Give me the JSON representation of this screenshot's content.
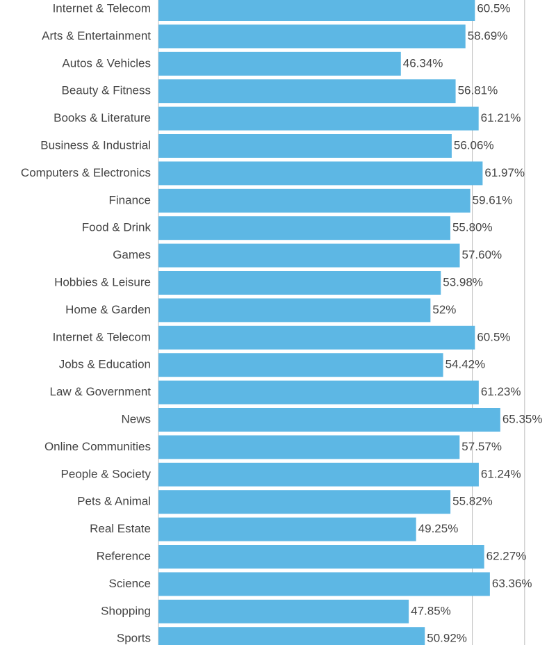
{
  "chart_data": {
    "type": "hbar",
    "color": "#5db7e4",
    "categories": [
      "Internet & Telecom",
      "Arts & Entertainment",
      "Autos & Vehicles",
      "Beauty & Fitness",
      "Books & Literature",
      "Business & Industrial",
      "Computers & Electronics",
      "Finance",
      "Food & Drink",
      "Games",
      "Hobbies & Leisure",
      "Home & Garden",
      "Internet & Telecom",
      "Jobs & Education",
      "Law & Government",
      "News",
      "Online Communities",
      "People & Society",
      "Pets & Animal",
      "Real Estate",
      "Reference",
      "Science",
      "Shopping",
      "Sports"
    ],
    "values": [
      60.5,
      58.69,
      46.34,
      56.81,
      61.21,
      56.06,
      61.97,
      59.61,
      55.8,
      57.6,
      53.98,
      52,
      60.5,
      54.42,
      61.23,
      65.35,
      57.57,
      61.24,
      55.82,
      49.25,
      62.27,
      63.36,
      47.85,
      50.92
    ],
    "value_labels": [
      "60.5%",
      "58.69%",
      "46.34%",
      "56.81%",
      "61.21%",
      "56.06%",
      "61.97%",
      "59.61%",
      "55.80%",
      "57.60%",
      "53.98%",
      "52%",
      "60.5%",
      "54.42%",
      "61.23%",
      "65.35%",
      "57.57%",
      "61.24%",
      "55.82%",
      "49.25%",
      "62.27%",
      "63.36%",
      "47.85%",
      "50.92%"
    ],
    "xlim": [
      0,
      76
    ],
    "gridlines": [
      60,
      70
    ]
  }
}
